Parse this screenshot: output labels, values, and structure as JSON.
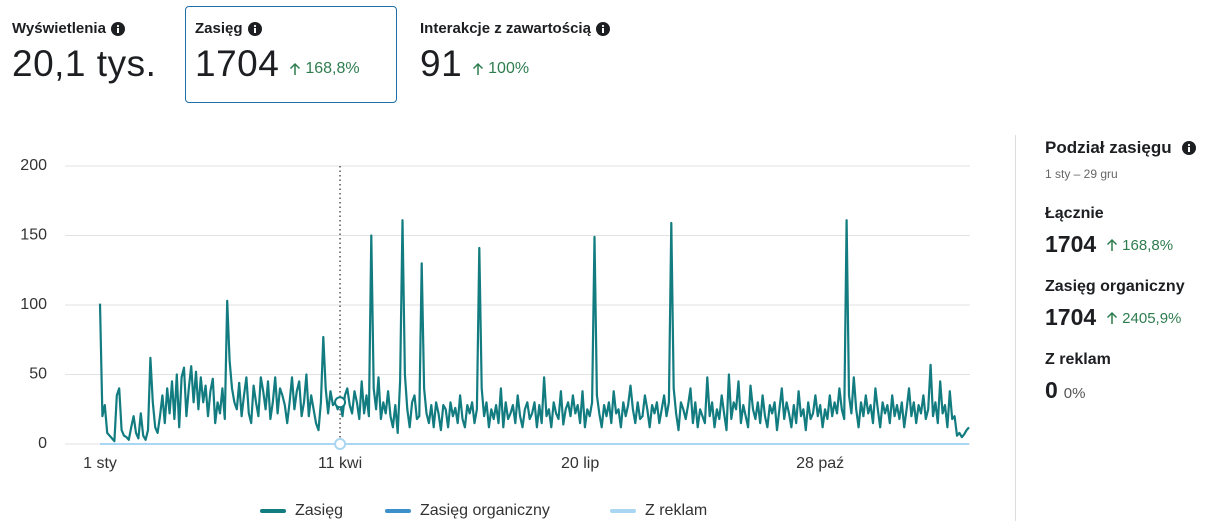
{
  "metrics": [
    {
      "label": "Wyświetlenia",
      "value": "20,1 tys."
    },
    {
      "label": "Zasięg",
      "value": "1704",
      "change": "168,8%"
    },
    {
      "label": "Interakcje z zawartością",
      "value": "91",
      "change": "100%"
    }
  ],
  "breakdown": {
    "title": "Podział zasięgu",
    "range": "1 sty – 29 gru",
    "items": [
      {
        "label": "Łącznie",
        "value": "1704",
        "change": "168,8%"
      },
      {
        "label": "Zasięg organiczny",
        "value": "1704",
        "change": "2405,9%"
      },
      {
        "label": "Z reklam",
        "value": "0",
        "change": "0%"
      }
    ]
  },
  "chart_data": {
    "type": "line",
    "ylim": [
      0,
      200
    ],
    "yticks": [
      0,
      50,
      100,
      150,
      200
    ],
    "grid": true,
    "categories": [
      "1 sty",
      null,
      null,
      null,
      null,
      null,
      null,
      null,
      null,
      null,
      null,
      null,
      null,
      null,
      null,
      null,
      null,
      null,
      null,
      null,
      null,
      null,
      null,
      null,
      null,
      null,
      null,
      null,
      null,
      null,
      null,
      null,
      null,
      null,
      null,
      null,
      null,
      null,
      null,
      null,
      null,
      null,
      null,
      null,
      null,
      null,
      null,
      null,
      null,
      null,
      null,
      null,
      null,
      null,
      null,
      null,
      null,
      null,
      null,
      null,
      null,
      null,
      null,
      null,
      null,
      null,
      null,
      null,
      null,
      null,
      null,
      null,
      null,
      null,
      null,
      null,
      null,
      null,
      null,
      null,
      null,
      null,
      null,
      null,
      null,
      null,
      null,
      null,
      null,
      null,
      null,
      null,
      null,
      null,
      null,
      null,
      null,
      null,
      null,
      null,
      "11 kwi",
      null,
      null,
      null,
      null,
      null,
      null,
      null,
      null,
      null,
      null,
      null,
      null,
      null,
      null,
      null,
      null,
      null,
      null,
      null,
      null,
      null,
      null,
      null,
      null,
      null,
      null,
      null,
      null,
      null,
      null,
      null,
      null,
      null,
      null,
      null,
      null,
      null,
      null,
      null,
      null,
      null,
      null,
      null,
      null,
      null,
      null,
      null,
      null,
      null,
      null,
      null,
      null,
      null,
      null,
      null,
      null,
      null,
      null,
      null,
      null,
      null,
      null,
      null,
      null,
      null,
      null,
      null,
      null,
      null,
      null,
      null,
      null,
      null,
      null,
      null,
      null,
      null,
      null,
      null,
      null,
      null,
      null,
      null,
      null,
      null,
      null,
      null,
      null,
      null,
      null,
      null,
      null,
      null,
      null,
      null,
      null,
      null,
      null,
      null,
      "20 lip",
      null,
      null,
      null,
      null,
      null,
      null,
      null,
      null,
      null,
      null,
      null,
      null,
      null,
      null,
      null,
      null,
      null,
      null,
      null,
      null,
      null,
      null,
      null,
      null,
      null,
      null,
      null,
      null,
      null,
      null,
      null,
      null,
      null,
      null,
      null,
      null,
      null,
      null,
      null,
      null,
      null,
      null,
      null,
      null,
      null,
      null,
      null,
      null,
      null,
      null,
      null,
      null,
      null,
      null,
      null,
      null,
      null,
      null,
      null,
      null,
      null,
      null,
      null,
      null,
      null,
      null,
      null,
      null,
      null,
      null,
      null,
      null,
      null,
      null,
      null,
      null,
      null,
      null,
      null,
      null,
      null,
      null,
      null,
      null,
      null,
      null,
      null,
      null,
      null,
      null,
      null,
      null,
      null,
      null,
      null,
      null,
      null,
      null,
      null,
      "28 paź",
      null,
      null,
      null,
      null,
      null,
      null,
      null,
      null,
      null,
      null,
      null,
      null,
      null,
      null,
      null,
      null,
      null,
      null,
      null,
      null,
      null,
      null,
      null,
      null,
      null,
      null,
      null,
      null,
      null,
      null,
      null,
      null,
      null,
      null,
      null,
      null,
      null,
      null,
      null,
      null,
      null,
      null,
      null,
      null,
      null,
      null,
      null,
      null,
      null,
      null,
      null,
      null,
      null,
      null,
      null,
      null,
      null,
      null,
      null,
      null,
      null,
      null
    ],
    "series": [
      {
        "name": "Zasięg",
        "color": "#127c80",
        "values": [
          101,
          20,
          28,
          8,
          6,
          4,
          2,
          35,
          40,
          10,
          6,
          5,
          3,
          12,
          20,
          8,
          4,
          22,
          6,
          3,
          10,
          62,
          30,
          12,
          8,
          20,
          35,
          15,
          40,
          22,
          45,
          18,
          50,
          12,
          48,
          55,
          20,
          40,
          56,
          30,
          52,
          25,
          48,
          30,
          42,
          20,
          38,
          47,
          15,
          30,
          22,
          40,
          18,
          103,
          60,
          40,
          30,
          25,
          44,
          20,
          35,
          48,
          22,
          15,
          42,
          30,
          20,
          48,
          38,
          25,
          45,
          18,
          30,
          48,
          22,
          40,
          35,
          28,
          15,
          30,
          48,
          25,
          38,
          45,
          20,
          30,
          50,
          20,
          35,
          25,
          15,
          10,
          30,
          77,
          40,
          22,
          38,
          28,
          30,
          25,
          30,
          20,
          35,
          40,
          28,
          22,
          38,
          30,
          18,
          45,
          22,
          35,
          20,
          150,
          40,
          25,
          48,
          18,
          30,
          22,
          38,
          20,
          12,
          28,
          8,
          45,
          161,
          50,
          25,
          12,
          30,
          35,
          18,
          20,
          130,
          40,
          22,
          15,
          28,
          12,
          30,
          22,
          10,
          28,
          25,
          12,
          30,
          20,
          26,
          15,
          35,
          18,
          12,
          28,
          22,
          30,
          15,
          25,
          141,
          40,
          20,
          30,
          12,
          25,
          18,
          28,
          15,
          40,
          12,
          30,
          18,
          22,
          28,
          15,
          35,
          20,
          12,
          25,
          30,
          18,
          22,
          30,
          12,
          28,
          15,
          48,
          20,
          25,
          12,
          30,
          22,
          18,
          38,
          14,
          25,
          30,
          20,
          35,
          22,
          28,
          15,
          38,
          12,
          25,
          20,
          30,
          149,
          35,
          22,
          12,
          28,
          20,
          30,
          15,
          38,
          22,
          25,
          12,
          30,
          20,
          28,
          42,
          25,
          15,
          30,
          18,
          20,
          35,
          25,
          12,
          28,
          22,
          30,
          15,
          25,
          35,
          20,
          30,
          159,
          40,
          22,
          10,
          30,
          25,
          18,
          28,
          40,
          15,
          30,
          12,
          25,
          20,
          15,
          48,
          20,
          30,
          12,
          25,
          18,
          35,
          22,
          10,
          50,
          18,
          30,
          25,
          45,
          15,
          28,
          20,
          12,
          42,
          25,
          18,
          30,
          15,
          35,
          20,
          12,
          28,
          22,
          30,
          10,
          25,
          40,
          18,
          30,
          22,
          12,
          28,
          15,
          38,
          20,
          25,
          10,
          30,
          18,
          22,
          35,
          20,
          28,
          12,
          25,
          18,
          35,
          20,
          30,
          22,
          40,
          25,
          18,
          161,
          35,
          22,
          48,
          25,
          12,
          30,
          20,
          35,
          22,
          28,
          15,
          40,
          25,
          12,
          30,
          22,
          28,
          15,
          35,
          20,
          28,
          18,
          30,
          12,
          25,
          40,
          20,
          30,
          15,
          28,
          22,
          35,
          18,
          25,
          57,
          20,
          30,
          15,
          45,
          22,
          28,
          12,
          38,
          18,
          20,
          6,
          8,
          5,
          7,
          10,
          12
        ]
      },
      {
        "name": "Zasięg organiczny",
        "color": "#3b8fcb"
      },
      {
        "name": "Z reklam",
        "color": "#a9d6f2",
        "values": [
          0,
          0,
          0,
          0,
          0,
          0,
          0,
          0,
          0,
          0,
          0,
          0,
          0,
          0,
          0,
          0,
          0,
          0,
          0,
          0,
          0,
          0,
          0,
          0,
          0,
          0,
          0,
          0,
          0,
          0,
          0,
          0,
          0,
          0,
          0,
          0,
          0,
          0,
          0,
          0,
          0,
          0,
          0,
          0,
          0,
          0,
          0,
          0,
          0,
          0,
          0,
          0,
          0,
          0,
          0,
          0,
          0,
          0,
          0,
          0,
          0,
          0,
          0,
          0,
          0,
          0,
          0,
          0,
          0,
          0,
          0,
          0,
          0,
          0,
          0,
          0,
          0,
          0,
          0,
          0,
          0,
          0,
          0,
          0,
          0,
          0,
          0,
          0,
          0,
          0,
          0,
          0,
          0,
          0,
          0,
          0,
          0,
          0,
          0,
          0,
          0,
          0,
          0,
          0,
          0,
          0,
          0,
          0,
          0,
          0,
          0,
          0,
          0,
          0,
          0,
          0,
          0,
          0,
          0,
          0,
          0,
          0,
          0,
          0,
          0,
          0,
          0,
          0,
          0,
          0,
          0,
          0,
          0,
          0,
          0,
          0,
          0,
          0,
          0,
          0,
          0,
          0,
          0,
          0,
          0,
          0,
          0,
          0,
          0,
          0,
          0,
          0,
          0,
          0,
          0,
          0,
          0,
          0,
          0,
          0,
          0,
          0,
          0,
          0,
          0,
          0,
          0,
          0,
          0,
          0,
          0,
          0,
          0,
          0,
          0,
          0,
          0,
          0,
          0,
          0,
          0,
          0,
          0,
          0,
          0,
          0,
          0,
          0,
          0,
          0,
          0,
          0,
          0,
          0,
          0,
          0,
          0,
          0,
          0,
          0,
          0,
          0,
          0,
          0,
          0,
          0,
          0,
          0,
          0,
          0,
          0,
          0,
          0,
          0,
          0,
          0,
          0,
          0,
          0,
          0,
          0,
          0,
          0,
          0,
          0,
          0,
          0,
          0,
          0,
          0,
          0,
          0,
          0,
          0,
          0,
          0,
          0,
          0,
          0,
          0,
          0,
          0,
          0,
          0,
          0,
          0,
          0,
          0,
          0,
          0,
          0,
          0,
          0,
          0,
          0,
          0,
          0,
          0,
          0,
          0,
          0,
          0,
          0,
          0,
          0,
          0,
          0,
          0,
          0,
          0,
          0,
          0,
          0,
          0,
          0,
          0,
          0,
          0,
          0,
          0,
          0,
          0,
          0,
          0,
          0,
          0,
          0,
          0,
          0,
          0,
          0,
          0,
          0,
          0,
          0,
          0,
          0,
          0,
          0,
          0,
          0,
          0,
          0,
          0,
          0,
          0,
          0,
          0,
          0,
          0,
          0,
          0,
          0,
          0,
          0,
          0,
          0,
          0,
          0,
          0,
          0,
          0,
          0,
          0,
          0,
          0,
          0,
          0,
          0,
          0,
          0,
          0,
          0,
          0,
          0,
          0,
          0,
          0,
          0,
          0,
          0,
          0,
          0,
          0,
          0,
          0,
          0,
          0,
          0,
          0,
          0,
          0,
          0,
          0,
          0,
          0,
          0,
          0,
          0,
          0,
          0,
          0,
          0
        ]
      }
    ]
  }
}
